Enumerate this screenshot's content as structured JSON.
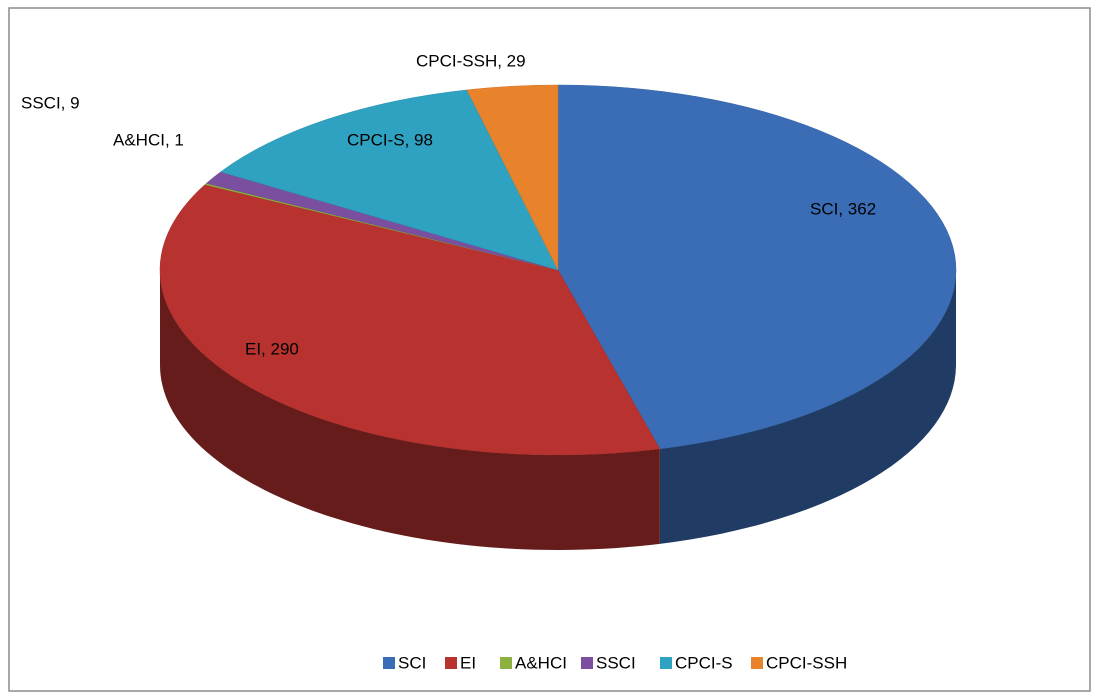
{
  "chart_data": {
    "type": "pie",
    "categories": [
      "SCI",
      "EI",
      "A&HCI",
      "SSCI",
      "CPCI-S",
      "CPCI-SSH"
    ],
    "values": [
      362,
      290,
      1,
      9,
      98,
      29
    ],
    "value_labels": [
      "SCI, 362",
      "EI, 290",
      "A&HCI, 1",
      "SSCI, 9",
      "CPCI-S, 98",
      "CPCI-SSH, 29"
    ],
    "colors": [
      "#3a6db5",
      "#b8322f",
      "#8db03f",
      "#7a4fa0",
      "#2ea2c0",
      "#e8822b"
    ],
    "legend": "bottom"
  }
}
